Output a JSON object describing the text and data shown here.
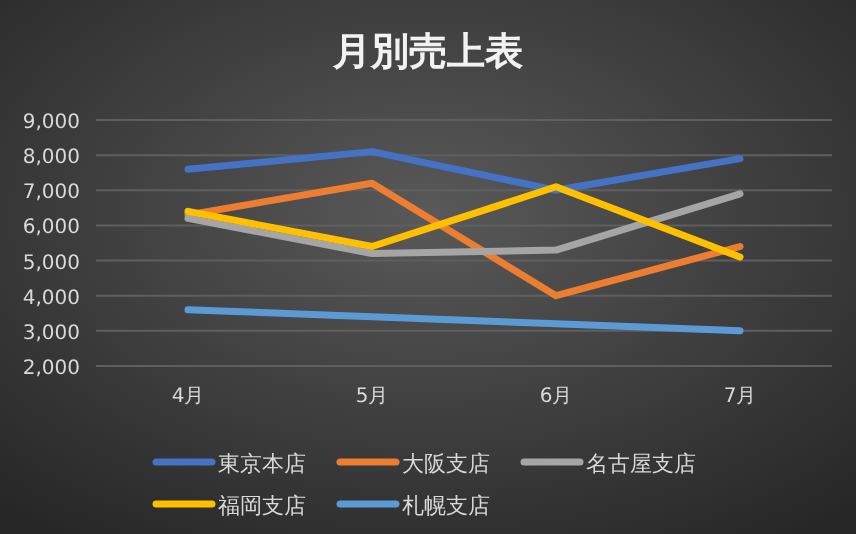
{
  "chart_data": {
    "type": "line",
    "title": "月別売上表",
    "categories": [
      "4月",
      "5月",
      "6月",
      "7月"
    ],
    "series": [
      {
        "name": "東京本店",
        "color": "#4472c4",
        "values": [
          7600,
          8100,
          7000,
          7900
        ]
      },
      {
        "name": "大阪支店",
        "color": "#ed7d31",
        "values": [
          6300,
          7200,
          4000,
          5400
        ]
      },
      {
        "name": "名古屋支店",
        "color": "#a5a5a5",
        "values": [
          6200,
          5200,
          5300,
          6900
        ]
      },
      {
        "name": "福岡支店",
        "color": "#ffc000",
        "values": [
          6400,
          5400,
          7100,
          5100
        ]
      },
      {
        "name": "札幌支店",
        "color": "#5b9bd5",
        "values": [
          3600,
          3400,
          3200,
          3000
        ]
      }
    ],
    "ylim": [
      2000,
      9000
    ],
    "yticks": [
      {
        "value": 2000,
        "label": "2,000"
      },
      {
        "value": 3000,
        "label": "3,000"
      },
      {
        "value": 4000,
        "label": "4,000"
      },
      {
        "value": 5000,
        "label": "5,000"
      },
      {
        "value": 6000,
        "label": "6,000"
      },
      {
        "value": 7000,
        "label": "7,000"
      },
      {
        "value": 8000,
        "label": "8,000"
      },
      {
        "value": 9000,
        "label": "9,000"
      }
    ],
    "grid": "y",
    "legend": "bottom",
    "marker": "none",
    "line_style": "solid"
  }
}
